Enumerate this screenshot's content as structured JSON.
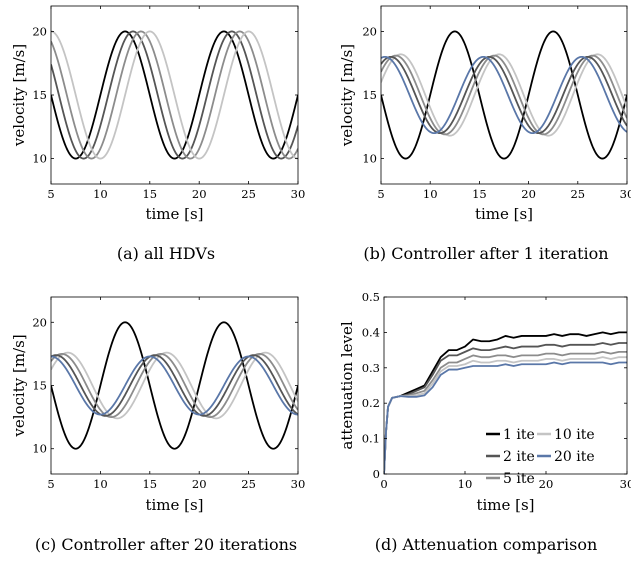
{
  "chart_data": [
    {
      "type": "line",
      "caption": "(a) all HDVs",
      "xlabel": "time [s]",
      "ylabel": "velocity [m/s]",
      "xlim": [
        5,
        30
      ],
      "ylim": [
        8,
        22
      ],
      "xticks": [
        5,
        10,
        15,
        20,
        25,
        30
      ],
      "yticks": [
        10,
        15,
        20
      ],
      "grid": false,
      "series": [
        {
          "color": "#000000",
          "waveform": "sine",
          "mean": 15,
          "amplitude": 5,
          "period_s": 10,
          "peak_at_s": 12.5
        },
        {
          "color": "#555555",
          "waveform": "sine",
          "mean": 15,
          "amplitude": 5,
          "period_s": 10,
          "peak_at_s": 13.3
        },
        {
          "color": "#8c8c8c",
          "waveform": "sine",
          "mean": 15,
          "amplitude": 5,
          "period_s": 10,
          "peak_at_s": 14.1
        },
        {
          "color": "#c4c4c4",
          "waveform": "sine",
          "mean": 15,
          "amplitude": 5,
          "period_s": 10,
          "peak_at_s": 15.0
        }
      ]
    },
    {
      "type": "line",
      "caption": "(b) Controller after 1 iteration",
      "xlabel": "time [s]",
      "ylabel": "velocity [m/s]",
      "xlim": [
        5,
        30
      ],
      "ylim": [
        8,
        22
      ],
      "xticks": [
        5,
        10,
        15,
        20,
        25,
        30
      ],
      "yticks": [
        10,
        15,
        20
      ],
      "grid": false,
      "series": [
        {
          "color": "#000000",
          "waveform": "sine",
          "mean": 15,
          "amplitude": 5,
          "period_s": 10,
          "peak_at_s": 12.5
        },
        {
          "color": "#c4c4c4",
          "waveform": "sine",
          "mean": 15,
          "amplitude": 3.2,
          "period_s": 10,
          "peak_at_s": 17.0
        },
        {
          "color": "#8c8c8c",
          "waveform": "sine",
          "mean": 15,
          "amplitude": 3.1,
          "period_s": 10,
          "peak_at_s": 16.5
        },
        {
          "color": "#555555",
          "waveform": "sine",
          "mean": 15,
          "amplitude": 3.0,
          "period_s": 10,
          "peak_at_s": 16.0
        },
        {
          "color": "#5a77a8",
          "waveform": "sine",
          "mean": 15,
          "amplitude": 3.0,
          "period_s": 10,
          "peak_at_s": 15.4
        }
      ]
    },
    {
      "type": "line",
      "caption": "(c) Controller after 20 iterations",
      "xlabel": "time [s]",
      "ylabel": "velocity [m/s]",
      "xlim": [
        5,
        30
      ],
      "ylim": [
        8,
        22
      ],
      "xticks": [
        5,
        10,
        15,
        20,
        25,
        30
      ],
      "yticks": [
        10,
        15,
        20
      ],
      "grid": false,
      "series": [
        {
          "color": "#000000",
          "waveform": "sine",
          "mean": 15,
          "amplitude": 5,
          "period_s": 10,
          "peak_at_s": 12.5
        },
        {
          "color": "#c4c4c4",
          "waveform": "sine",
          "mean": 15,
          "amplitude": 2.6,
          "period_s": 10,
          "peak_at_s": 16.7
        },
        {
          "color": "#8c8c8c",
          "waveform": "sine",
          "mean": 15,
          "amplitude": 2.5,
          "period_s": 10,
          "peak_at_s": 16.1
        },
        {
          "color": "#555555",
          "waveform": "sine",
          "mean": 15,
          "amplitude": 2.4,
          "period_s": 10,
          "peak_at_s": 15.5
        },
        {
          "color": "#5a77a8",
          "waveform": "sine",
          "mean": 15,
          "amplitude": 2.3,
          "period_s": 10,
          "peak_at_s": 15.0
        }
      ]
    },
    {
      "type": "line",
      "caption": "(d) Attenuation comparison",
      "xlabel": "time [s]",
      "ylabel": "attenuation level",
      "xlim": [
        0,
        30
      ],
      "ylim": [
        0,
        0.5
      ],
      "xticks": [
        0,
        10,
        20,
        30
      ],
      "yticks": [
        0,
        0.1,
        0.2,
        0.3,
        0.4,
        0.5
      ],
      "grid": false,
      "legend_position": "bottom-right",
      "legend": [
        {
          "label": "1 ite",
          "color": "#000000"
        },
        {
          "label": "10 ite",
          "color": "#c4c4c4"
        },
        {
          "label": "2 ite",
          "color": "#555555"
        },
        {
          "label": "20 ite",
          "color": "#5a77a8"
        },
        {
          "label": "5 ite",
          "color": "#8c8c8c"
        }
      ],
      "series": [
        {
          "name": "1 ite",
          "color": "#000000",
          "x": [
            0,
            0.25,
            0.5,
            1,
            2,
            3,
            4,
            5,
            6,
            7,
            8,
            9,
            10,
            11,
            12,
            13,
            14,
            15,
            16,
            17,
            18,
            19,
            20,
            21,
            22,
            23,
            24,
            25,
            26,
            27,
            28,
            29,
            30
          ],
          "y": [
            0,
            0.12,
            0.19,
            0.215,
            0.22,
            0.23,
            0.24,
            0.25,
            0.29,
            0.33,
            0.35,
            0.35,
            0.36,
            0.38,
            0.375,
            0.375,
            0.38,
            0.39,
            0.385,
            0.39,
            0.39,
            0.39,
            0.39,
            0.395,
            0.39,
            0.395,
            0.395,
            0.39,
            0.395,
            0.4,
            0.395,
            0.4,
            0.4
          ]
        },
        {
          "name": "2 ite",
          "color": "#555555",
          "x": [
            0,
            0.25,
            0.5,
            1,
            2,
            3,
            4,
            5,
            6,
            7,
            8,
            9,
            10,
            11,
            12,
            13,
            14,
            15,
            16,
            17,
            18,
            19,
            20,
            21,
            22,
            23,
            24,
            25,
            26,
            27,
            28,
            29,
            30
          ],
          "y": [
            0,
            0.12,
            0.19,
            0.215,
            0.22,
            0.225,
            0.235,
            0.245,
            0.28,
            0.32,
            0.335,
            0.335,
            0.345,
            0.355,
            0.35,
            0.35,
            0.355,
            0.36,
            0.355,
            0.36,
            0.36,
            0.36,
            0.365,
            0.365,
            0.36,
            0.365,
            0.365,
            0.365,
            0.365,
            0.37,
            0.365,
            0.37,
            0.37
          ]
        },
        {
          "name": "5 ite",
          "color": "#8c8c8c",
          "x": [
            0,
            0.25,
            0.5,
            1,
            2,
            3,
            4,
            5,
            6,
            7,
            8,
            9,
            10,
            11,
            12,
            13,
            14,
            15,
            16,
            17,
            18,
            19,
            20,
            21,
            22,
            23,
            24,
            25,
            26,
            27,
            28,
            29,
            30
          ],
          "y": [
            0,
            0.12,
            0.19,
            0.215,
            0.22,
            0.222,
            0.228,
            0.235,
            0.265,
            0.3,
            0.315,
            0.315,
            0.325,
            0.335,
            0.33,
            0.33,
            0.335,
            0.335,
            0.33,
            0.335,
            0.335,
            0.335,
            0.34,
            0.34,
            0.335,
            0.34,
            0.34,
            0.34,
            0.34,
            0.345,
            0.34,
            0.345,
            0.345
          ]
        },
        {
          "name": "10 ite",
          "color": "#c4c4c4",
          "x": [
            0,
            0.25,
            0.5,
            1,
            2,
            3,
            4,
            5,
            6,
            7,
            8,
            9,
            10,
            11,
            12,
            13,
            14,
            15,
            16,
            17,
            18,
            19,
            20,
            21,
            22,
            23,
            24,
            25,
            26,
            27,
            28,
            29,
            30
          ],
          "y": [
            0,
            0.12,
            0.19,
            0.215,
            0.22,
            0.22,
            0.222,
            0.228,
            0.255,
            0.29,
            0.305,
            0.305,
            0.31,
            0.32,
            0.315,
            0.315,
            0.32,
            0.32,
            0.315,
            0.32,
            0.32,
            0.32,
            0.325,
            0.325,
            0.32,
            0.325,
            0.325,
            0.325,
            0.325,
            0.33,
            0.325,
            0.33,
            0.33
          ]
        },
        {
          "name": "20 ite",
          "color": "#5a77a8",
          "x": [
            0,
            0.25,
            0.5,
            1,
            2,
            3,
            4,
            5,
            6,
            7,
            8,
            9,
            10,
            11,
            12,
            13,
            14,
            15,
            16,
            17,
            18,
            19,
            20,
            21,
            22,
            23,
            24,
            25,
            26,
            27,
            28,
            29,
            30
          ],
          "y": [
            0,
            0.12,
            0.19,
            0.215,
            0.22,
            0.218,
            0.218,
            0.222,
            0.245,
            0.28,
            0.295,
            0.295,
            0.3,
            0.305,
            0.305,
            0.305,
            0.305,
            0.31,
            0.305,
            0.31,
            0.31,
            0.31,
            0.31,
            0.315,
            0.31,
            0.315,
            0.315,
            0.315,
            0.315,
            0.315,
            0.31,
            0.315,
            0.315
          ]
        }
      ]
    }
  ]
}
